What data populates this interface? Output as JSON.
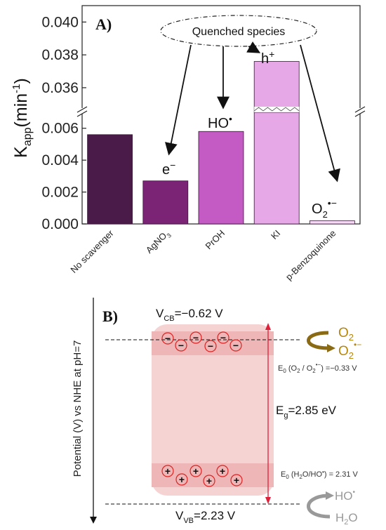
{
  "colors": {
    "no_scavenger": "#4a1a48",
    "agno3": "#7b2476",
    "proh": "#c45ac4",
    "ki": "#e6a8e6",
    "pbq": "#f4d8f4",
    "band": "#f6cfcf",
    "arrow_red": "#e0203a",
    "o2": "#b8860b",
    "gray": "#999999"
  },
  "chart_data": [
    {
      "type": "bar",
      "panel_label": "A)",
      "ylabel_main": "K",
      "ylabel_sub": "app",
      "ylabel_unit": "(min",
      "ylabel_sup": "-1",
      "ylabel_close": ")",
      "axis_break": true,
      "ylim_lower": [
        0.0,
        0.007
      ],
      "ylim_upper": [
        0.0345,
        0.041
      ],
      "yticks_lower": [
        "0.000",
        "0.002",
        "0.004",
        "0.006"
      ],
      "yticks_upper": [
        "0.036",
        "0.038",
        "0.040"
      ],
      "categories": [
        "No scavenger",
        "AgNO",
        "PrOH",
        "KI",
        "p-Benzoquinone"
      ],
      "category_sub": [
        "",
        "3",
        "",
        "",
        ""
      ],
      "values": [
        0.0056,
        0.0027,
        0.0058,
        0.0376,
        0.0002
      ],
      "annotations": {
        "quenched": "Quenched species",
        "electron": "e",
        "electron_sup": "−",
        "hydroxyl": "HO",
        "hydroxyl_sup": "•",
        "hole": "h",
        "hole_sup": "+",
        "superoxide": "O",
        "superoxide_sub": "2",
        "superoxide_sup": "•−"
      }
    },
    {
      "type": "diagram",
      "panel_label": "B)",
      "y_axis_label": "Potential (V) vs NHE at pH=7",
      "vcb_main": "V",
      "vcb_sub": "CB",
      "vcb_value": "=−0.62 V",
      "vvb_main": "V",
      "vvb_sub": "VB",
      "vvb_value": "=2.23 V",
      "eg_main": "E",
      "eg_sub": "g",
      "eg_value": "=2.85 eV",
      "o2": "O",
      "o2_sub": "2",
      "o2m": "O",
      "o2m_sub": "2",
      "o2m_sup": "•−",
      "e0_o2": "E",
      "e0_o2_sub": "0",
      "e0_o2_text": " (O",
      "e0_o2_sub2": "2",
      "e0_o2_slash": " / O",
      "e0_o2_sub3": "2",
      "e0_o2_sup3": "•−",
      "e0_o2_val": ") =−0.33 V",
      "e0_oh": "E",
      "e0_oh_sub": "0",
      "e0_oh_text": " (H",
      "e0_oh_sub2": "2",
      "e0_oh_mid": "O/HO",
      "e0_oh_sup": "•",
      "e0_oh_val": ") = 2.31 V",
      "ho": "HO",
      "ho_sup": "•",
      "h2o": "H",
      "h2o_sub": "2",
      "h2o_end": "O",
      "minus_sign": "−",
      "plus_sign": "+"
    }
  ]
}
